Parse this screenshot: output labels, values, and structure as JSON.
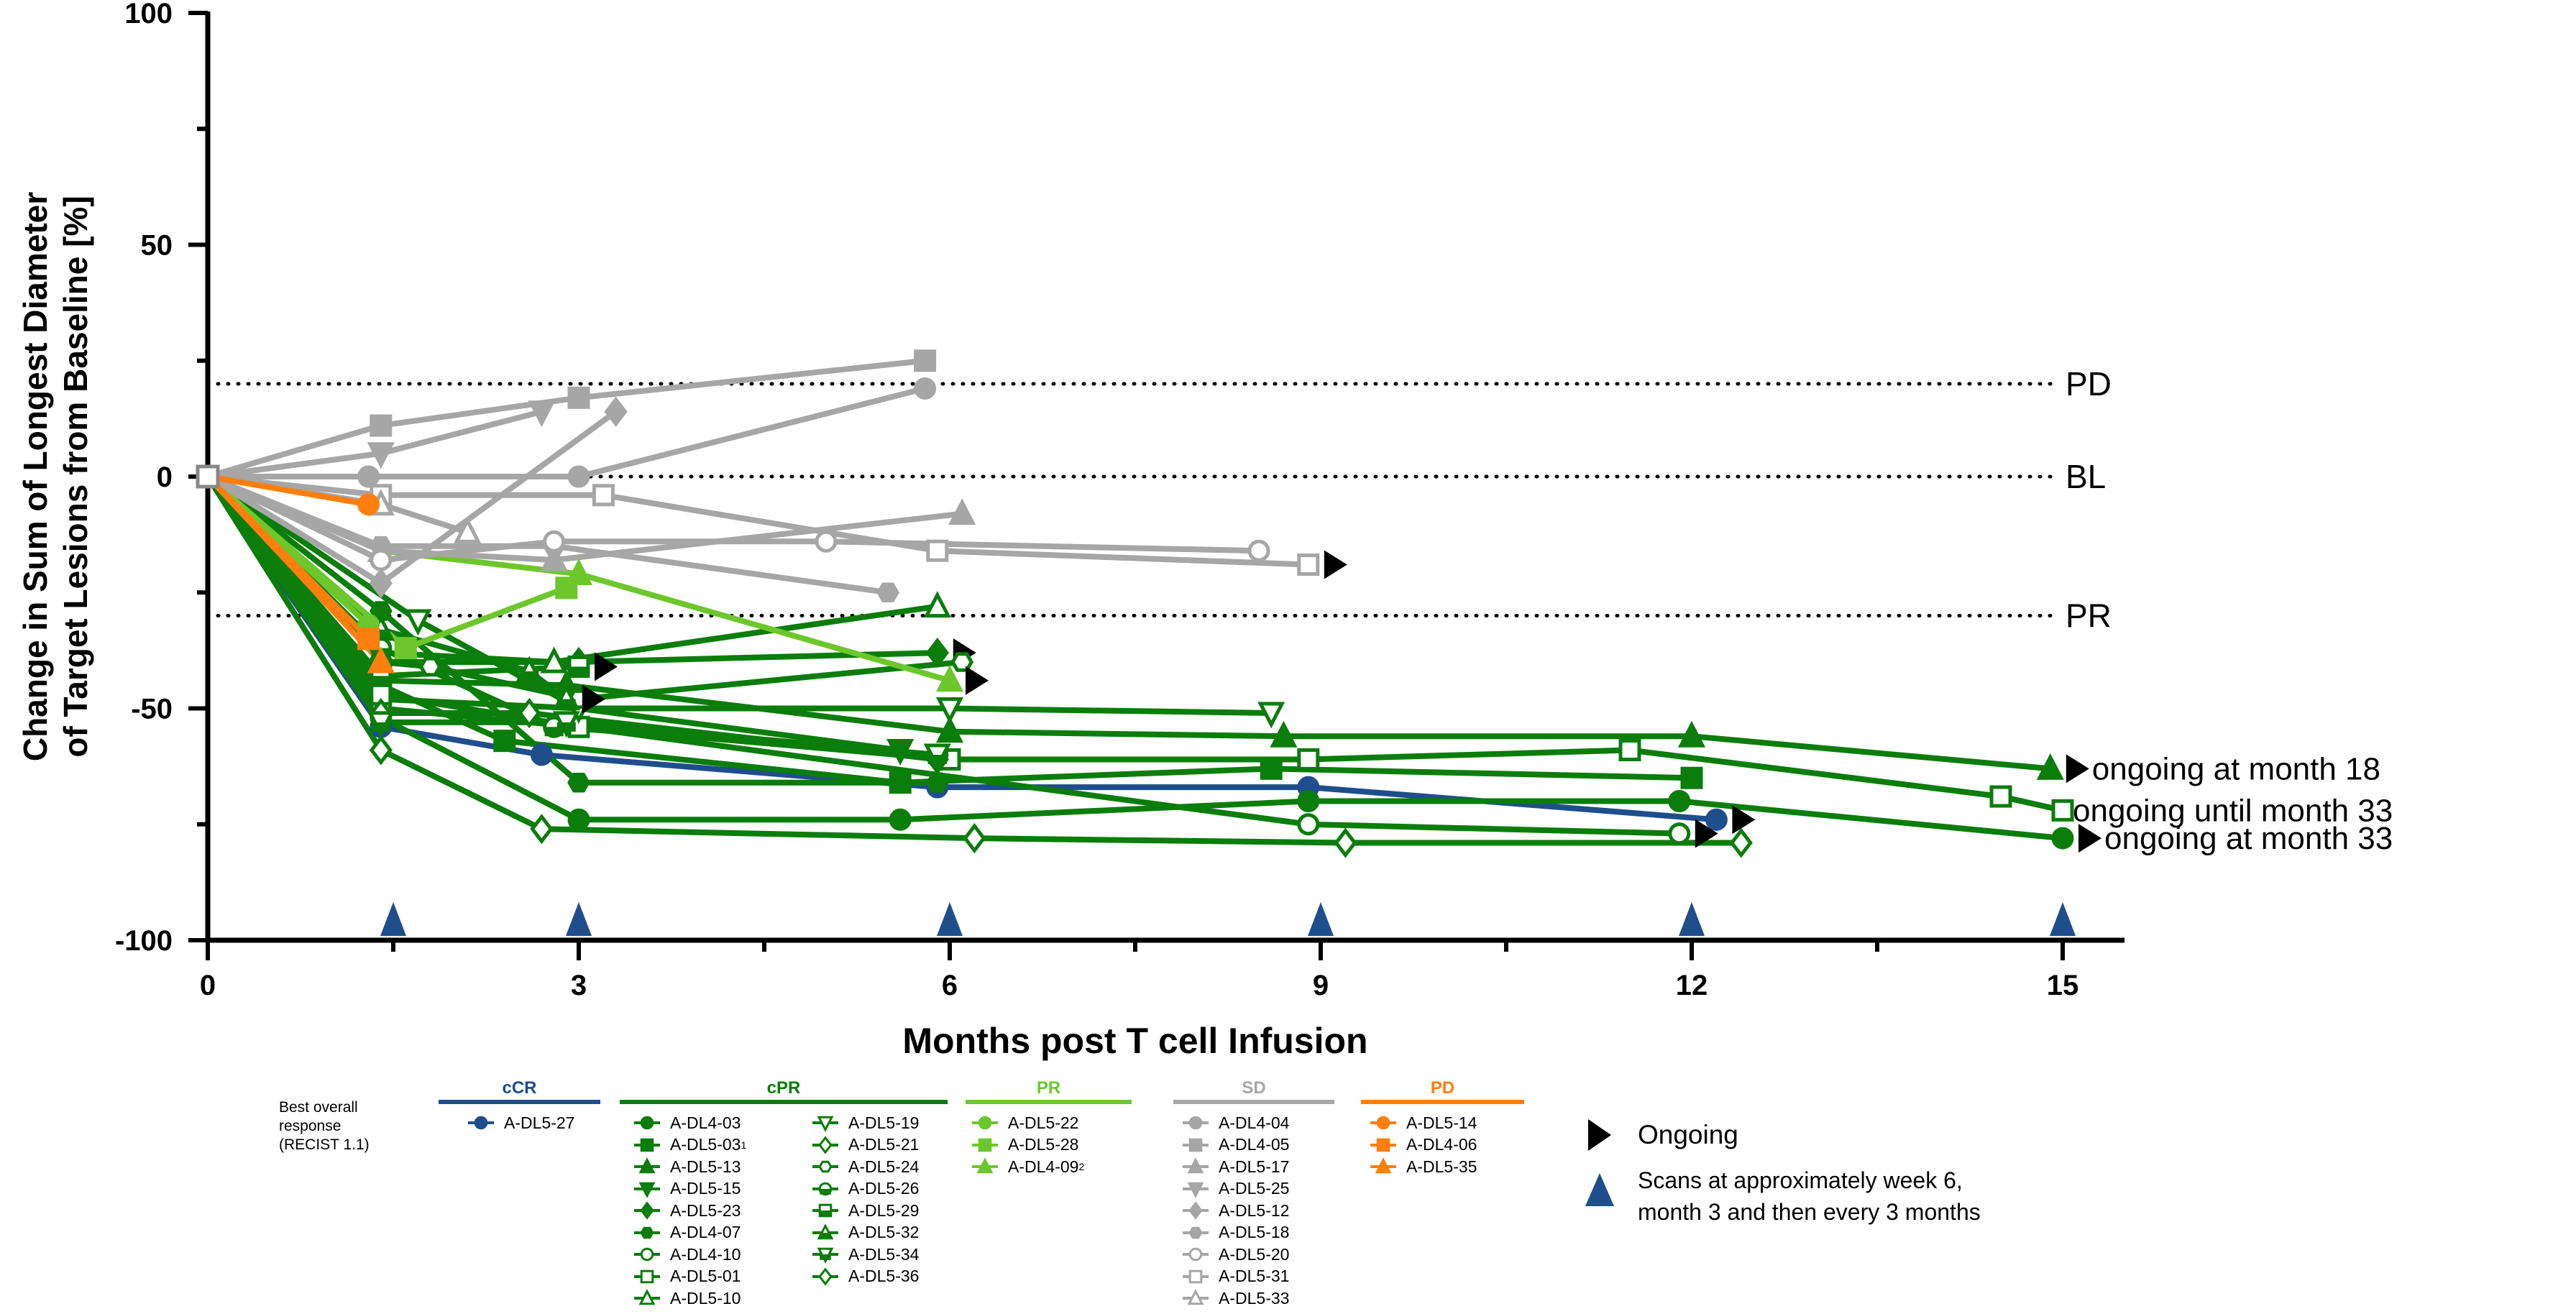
{
  "chart_data": {
    "type": "line",
    "xlabel": "Months post T cell Infusion",
    "ylabel": [
      "Change in Sum of Longest Diameter",
      "of Target Lesions from Baseline [%]"
    ],
    "xlim": [
      0,
      15.5
    ],
    "ylim": [
      -100,
      100
    ],
    "xticks": [
      0,
      3,
      6,
      9,
      12,
      15
    ],
    "yticks": [
      100,
      50,
      0,
      -50,
      -100
    ],
    "grid": false,
    "reference_lines": [
      {
        "label": "PD",
        "y": 20
      },
      {
        "label": "BL",
        "y": 0
      },
      {
        "label": "PR",
        "y": -30
      }
    ],
    "groups": [
      {
        "key": "cCR",
        "color": "#1f4e8c"
      },
      {
        "key": "cPR",
        "color": "#0a7d0a"
      },
      {
        "key": "PR",
        "color": "#6cc72c"
      },
      {
        "key": "SD",
        "color": "#a6a6a6"
      },
      {
        "key": "PD",
        "color": "#ff7f0e"
      }
    ],
    "series": [
      {
        "name": "A-DL5-27",
        "group": "cCR",
        "marker": "circle",
        "fill": "filled",
        "ongoing": true,
        "points": [
          [
            0,
            0
          ],
          [
            1.4,
            -54
          ],
          [
            2.7,
            -60
          ],
          [
            5.9,
            -67
          ],
          [
            8.9,
            -67
          ],
          [
            12.2,
            -74
          ]
        ]
      },
      {
        "name": "A-DL4-03",
        "group": "cPR",
        "marker": "circle",
        "fill": "filled",
        "ongoing": true,
        "note": "ongoing at month 33",
        "points": [
          [
            0,
            0
          ],
          [
            1.4,
            -52
          ],
          [
            3.0,
            -74
          ],
          [
            5.6,
            -74
          ],
          [
            8.9,
            -70
          ],
          [
            11.9,
            -70
          ],
          [
            15.0,
            -78
          ]
        ]
      },
      {
        "name": "A-DL5-03",
        "sup": "1",
        "group": "cPR",
        "marker": "square",
        "fill": "filled",
        "points": [
          [
            0,
            0
          ],
          [
            1.4,
            -45
          ],
          [
            2.4,
            -57
          ],
          [
            5.6,
            -66
          ],
          [
            8.6,
            -63
          ],
          [
            12.0,
            -65
          ]
        ]
      },
      {
        "name": "A-DL5-13",
        "group": "cPR",
        "marker": "triangle",
        "fill": "filled",
        "ongoing": true,
        "note": "ongoing at month 18",
        "points": [
          [
            0,
            0
          ],
          [
            1.4,
            -44
          ],
          [
            2.9,
            -45
          ],
          [
            6.0,
            -55
          ],
          [
            8.7,
            -56
          ],
          [
            12.0,
            -56
          ],
          [
            14.9,
            -63
          ]
        ]
      },
      {
        "name": "A-DL5-15",
        "group": "cPR",
        "marker": "tri-down",
        "fill": "filled",
        "points": [
          [
            0,
            0
          ],
          [
            1.4,
            -48
          ],
          [
            3.0,
            -50
          ],
          [
            5.6,
            -59
          ]
        ]
      },
      {
        "name": "A-DL5-23",
        "group": "cPR",
        "marker": "diamond",
        "fill": "filled",
        "ongoing": true,
        "points": [
          [
            0,
            0
          ],
          [
            1.4,
            -40
          ],
          [
            3.0,
            -40
          ],
          [
            5.9,
            -38
          ]
        ]
      },
      {
        "name": "A-DL4-07",
        "group": "cPR",
        "marker": "hexagon",
        "fill": "filled",
        "points": [
          [
            0,
            0
          ],
          [
            1.4,
            -29
          ],
          [
            3.0,
            -66
          ],
          [
            5.9,
            -66
          ]
        ]
      },
      {
        "name": "A-DL4-10",
        "group": "cPR",
        "marker": "circle",
        "fill": "open",
        "ongoing": true,
        "points": [
          [
            0,
            0
          ],
          [
            1.4,
            -50
          ],
          [
            3.0,
            -54
          ],
          [
            8.9,
            -75
          ],
          [
            11.9,
            -77
          ]
        ]
      },
      {
        "name": "A-DL5-01",
        "group": "cPR",
        "marker": "square",
        "fill": "open",
        "note": "ongoing until month 33",
        "points": [
          [
            0,
            0
          ],
          [
            1.4,
            -47
          ],
          [
            3.0,
            -54
          ],
          [
            6.0,
            -61
          ],
          [
            8.9,
            -61
          ],
          [
            11.5,
            -59
          ],
          [
            14.5,
            -69
          ],
          [
            15.0,
            -72
          ]
        ]
      },
      {
        "name": "A-DL5-10",
        "group": "cPR",
        "marker": "triangle",
        "fill": "open",
        "points": [
          [
            0,
            0
          ],
          [
            1.4,
            -38
          ],
          [
            2.8,
            -40
          ],
          [
            5.9,
            -28
          ]
        ]
      },
      {
        "name": "A-DL5-19",
        "group": "cPR",
        "marker": "tri-down",
        "fill": "open",
        "points": [
          [
            0,
            0
          ],
          [
            1.7,
            -31
          ],
          [
            3.0,
            -50
          ],
          [
            6.0,
            -50
          ],
          [
            8.6,
            -51
          ]
        ]
      },
      {
        "name": "A-DL5-21",
        "group": "cPR",
        "marker": "diamond",
        "fill": "open",
        "points": [
          [
            0,
            0
          ],
          [
            1.4,
            -51
          ],
          [
            2.6,
            -51
          ],
          [
            5.9,
            -61
          ]
        ]
      },
      {
        "name": "A-DL5-24",
        "group": "cPR",
        "marker": "hexagon",
        "fill": "open",
        "points": [
          [
            0,
            0
          ],
          [
            1.4,
            -40
          ],
          [
            1.8,
            -41
          ],
          [
            3.0,
            -48
          ],
          [
            6.1,
            -40
          ]
        ]
      },
      {
        "name": "A-DL5-26",
        "group": "cPR",
        "marker": "circle",
        "fill": "half",
        "points": [
          [
            0,
            0
          ],
          [
            1.4,
            -37
          ],
          [
            2.8,
            -54
          ],
          [
            5.9,
            -60
          ]
        ]
      },
      {
        "name": "A-DL5-29",
        "group": "cPR",
        "marker": "square",
        "fill": "half",
        "ongoing": true,
        "points": [
          [
            0,
            0
          ],
          [
            1.4,
            -43
          ],
          [
            3.0,
            -41
          ]
        ]
      },
      {
        "name": "A-DL5-32",
        "group": "cPR",
        "marker": "triangle",
        "fill": "half",
        "ongoing": true,
        "points": [
          [
            0,
            0
          ],
          [
            1.4,
            -33
          ],
          [
            2.6,
            -42
          ],
          [
            2.9,
            -48
          ]
        ]
      },
      {
        "name": "A-DL5-34",
        "group": "cPR",
        "marker": "tri-down",
        "fill": "half",
        "points": [
          [
            0,
            0
          ],
          [
            1.4,
            -53
          ],
          [
            2.9,
            -53
          ],
          [
            5.9,
            -60
          ]
        ]
      },
      {
        "name": "A-DL5-36",
        "group": "cPR",
        "marker": "diamond",
        "fill": "open",
        "points": [
          [
            0,
            0
          ],
          [
            1.4,
            -59
          ],
          [
            2.7,
            -76
          ],
          [
            6.2,
            -78
          ],
          [
            9.2,
            -79
          ],
          [
            12.4,
            -79
          ]
        ]
      },
      {
        "name": "A-DL5-22",
        "group": "PR",
        "marker": "circle",
        "fill": "filled",
        "points": [
          [
            0,
            0
          ],
          [
            1.3,
            -32
          ]
        ]
      },
      {
        "name": "A-DL5-28",
        "group": "PR",
        "marker": "square",
        "fill": "filled",
        "points": [
          [
            0,
            0
          ],
          [
            1.6,
            -37
          ],
          [
            2.9,
            -24
          ]
        ]
      },
      {
        "name": "A-DL4-09",
        "sup": "2",
        "group": "PR",
        "marker": "triangle",
        "fill": "filled",
        "ongoing": true,
        "points": [
          [
            0,
            0
          ],
          [
            1.4,
            -16
          ],
          [
            3.0,
            -21
          ],
          [
            6.0,
            -44
          ]
        ]
      },
      {
        "name": "A-DL4-04",
        "group": "SD",
        "marker": "circle",
        "fill": "filled",
        "points": [
          [
            0,
            0
          ],
          [
            1.3,
            0
          ],
          [
            3.0,
            0
          ],
          [
            5.8,
            19
          ]
        ]
      },
      {
        "name": "A-DL4-05",
        "group": "SD",
        "marker": "square",
        "fill": "filled",
        "points": [
          [
            0,
            0
          ],
          [
            1.4,
            11
          ],
          [
            3.0,
            17
          ],
          [
            5.8,
            25
          ]
        ]
      },
      {
        "name": "A-DL5-17",
        "group": "SD",
        "marker": "triangle",
        "fill": "filled",
        "points": [
          [
            0,
            0
          ],
          [
            1.4,
            -16
          ],
          [
            2.8,
            -18
          ],
          [
            6.1,
            -8
          ]
        ]
      },
      {
        "name": "A-DL5-25",
        "group": "SD",
        "marker": "tri-down",
        "fill": "filled",
        "points": [
          [
            0,
            0
          ],
          [
            1.4,
            5
          ],
          [
            2.7,
            14
          ]
        ]
      },
      {
        "name": "A-DL5-12",
        "group": "SD",
        "marker": "diamond",
        "fill": "filled",
        "points": [
          [
            0,
            0
          ],
          [
            1.4,
            -23
          ],
          [
            3.3,
            14
          ]
        ]
      },
      {
        "name": "A-DL5-18",
        "group": "SD",
        "marker": "hexagon",
        "fill": "filled",
        "points": [
          [
            0,
            0
          ],
          [
            1.4,
            -15
          ],
          [
            2.8,
            -15
          ],
          [
            5.5,
            -25
          ]
        ]
      },
      {
        "name": "A-DL5-20",
        "group": "SD",
        "marker": "circle",
        "fill": "open",
        "points": [
          [
            0,
            0
          ],
          [
            1.4,
            -18
          ],
          [
            2.8,
            -14
          ],
          [
            5.0,
            -14
          ],
          [
            8.5,
            -16
          ]
        ]
      },
      {
        "name": "A-DL5-31",
        "group": "SD",
        "marker": "square",
        "fill": "open",
        "ongoing": true,
        "points": [
          [
            0,
            0
          ],
          [
            1.4,
            -4
          ],
          [
            3.2,
            -4
          ],
          [
            5.9,
            -16
          ],
          [
            8.9,
            -19
          ]
        ]
      },
      {
        "name": "A-DL5-33",
        "group": "SD",
        "marker": "triangle",
        "fill": "open",
        "points": [
          [
            0,
            0
          ],
          [
            1.4,
            -6
          ],
          [
            2.1,
            -12
          ]
        ]
      },
      {
        "name": "A-DL5-14",
        "group": "PD",
        "marker": "circle",
        "fill": "filled",
        "points": [
          [
            0,
            0
          ],
          [
            1.3,
            -6
          ]
        ]
      },
      {
        "name": "A-DL4-06",
        "group": "PD",
        "marker": "square",
        "fill": "filled",
        "points": [
          [
            0,
            0
          ],
          [
            1.3,
            -35
          ]
        ]
      },
      {
        "name": "A-DL5-35",
        "group": "PD",
        "marker": "triangle",
        "fill": "filled",
        "points": [
          [
            0,
            0
          ],
          [
            1.4,
            -40
          ]
        ]
      }
    ],
    "scan_times": [
      1.5,
      3,
      6,
      9,
      12,
      15
    ]
  },
  "legend": {
    "title_lines": [
      "Best overall",
      "response",
      "(RECIST 1.1)"
    ],
    "ongoing_label": "Ongoing",
    "scans_label_lines": [
      "Scans at approximately week 6,",
      "month 3 and then every 3 months"
    ]
  }
}
